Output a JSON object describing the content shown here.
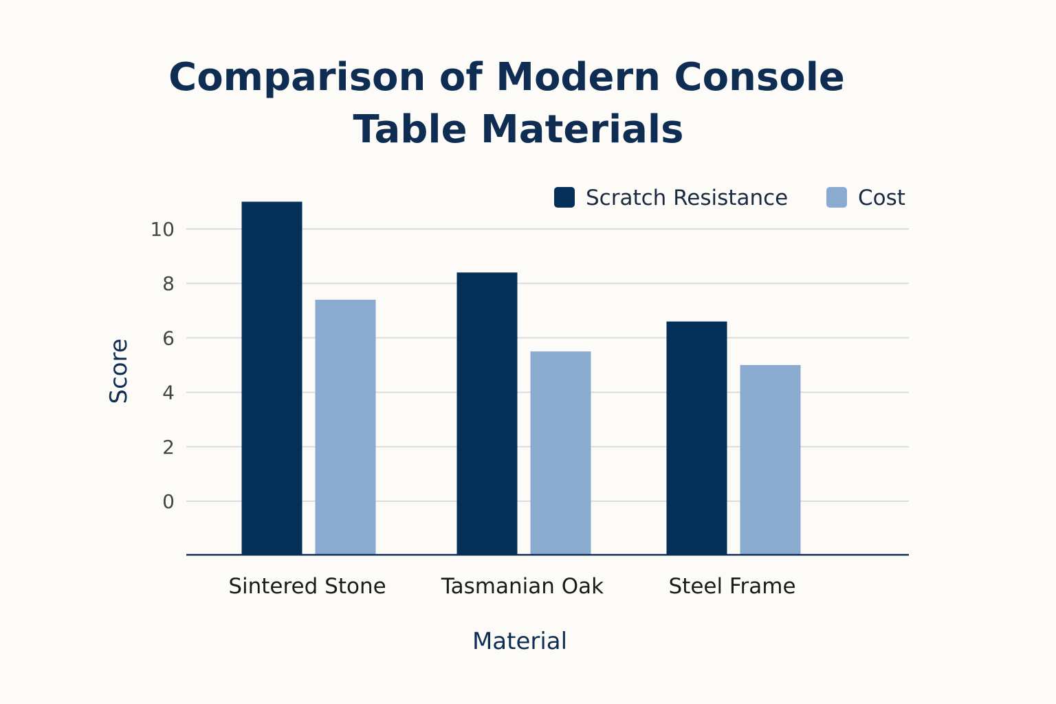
{
  "chart_data": {
    "type": "bar",
    "title": "Comparison of Modern Console Table Materials",
    "title_lines": [
      "Comparison of Modern Console",
      "Table Materials"
    ],
    "xlabel": "Material",
    "ylabel": "Score",
    "categories": [
      "Sintered Stone",
      "Tasmanian Oak",
      "Steel Frame"
    ],
    "series": [
      {
        "name": "Scratch Resistance",
        "color": "#032f58",
        "values": [
          11.0,
          8.4,
          6.6
        ]
      },
      {
        "name": "Cost",
        "color": "#8aaad0",
        "values": [
          7.4,
          5.5,
          5.0
        ]
      }
    ],
    "yticks": [
      "0",
      "2",
      "4",
      "6",
      "8",
      "10"
    ],
    "ylim": [
      -2,
      11
    ],
    "grid": true,
    "legend_position": "top-right"
  }
}
